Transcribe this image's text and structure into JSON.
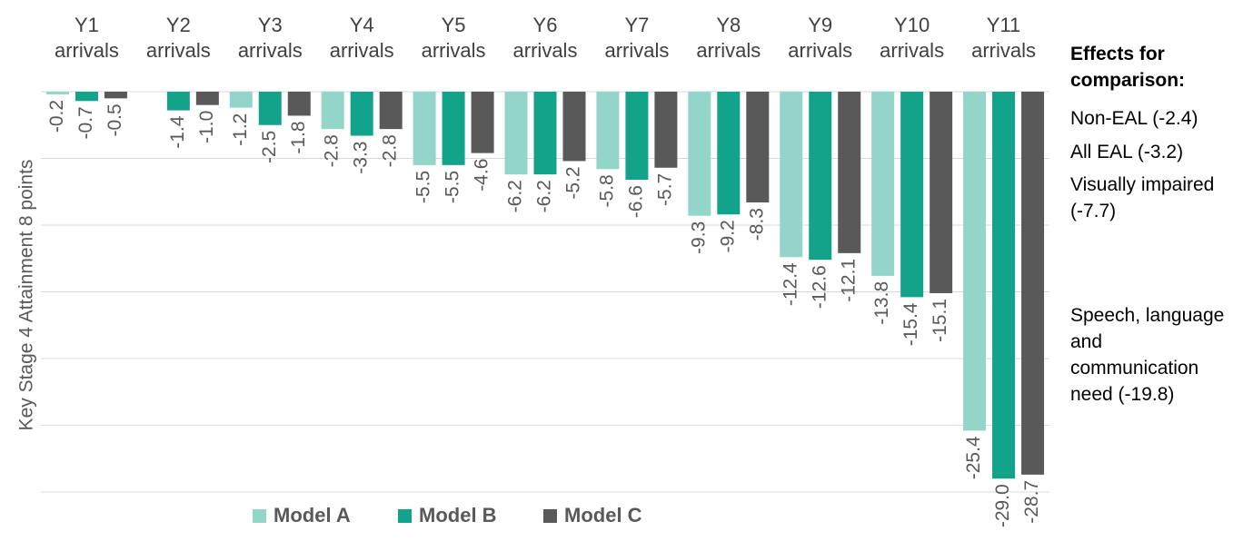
{
  "chart_data": {
    "type": "bar",
    "y_label": "Key Stage 4 Attainment 8 points",
    "categories": [
      "Y1 arrivals",
      "Y2 arrivals",
      "Y3 arrivals",
      "Y4 arrivals",
      "Y5 arrivals",
      "Y6 arrivals",
      "Y7 arrivals",
      "Y8 arrivals",
      "Y9 arrivals",
      "Y10 arrivals",
      "Y11 arrivals"
    ],
    "series": [
      {
        "name": "Model A",
        "color": "#93d5c8",
        "values": [
          -0.2,
          null,
          -1.2,
          -2.8,
          -5.5,
          -6.2,
          -5.8,
          -9.3,
          -12.4,
          -13.8,
          -25.4
        ],
        "value_labels": [
          "-0.2",
          null,
          "-1.2",
          "-2.8",
          "-5.5",
          "-6.2",
          "-5.8",
          "-9.3",
          "-12.4",
          "-13.8",
          "-25.4"
        ]
      },
      {
        "name": "Model B",
        "color": "#13a38a",
        "values": [
          -0.7,
          -1.4,
          -2.5,
          -3.3,
          -5.5,
          -6.2,
          -6.6,
          -9.2,
          -12.6,
          -15.4,
          -29.0
        ],
        "value_labels": [
          "-0.7",
          "-1.4",
          "-2.5",
          "-3.3",
          "-5.5",
          "-6.2",
          "-6.6",
          "-9.2",
          "-12.6",
          "-15.4",
          "-29.0"
        ]
      },
      {
        "name": "Model C",
        "color": "#595959",
        "values": [
          -0.5,
          -1.0,
          -1.8,
          -2.8,
          -4.6,
          -5.2,
          -5.7,
          -8.3,
          -12.1,
          -15.1,
          -28.7
        ],
        "value_labels": [
          "-0.5",
          "-1.0",
          "-1.8",
          "-2.8",
          "-4.6",
          "-5.2",
          "-5.7",
          "-8.3",
          "-12.1",
          "-15.1",
          "-28.7"
        ]
      }
    ],
    "ylim": [
      -30,
      0
    ],
    "yticks": [
      0,
      -5,
      -10,
      -15,
      -20,
      -25,
      -30
    ],
    "grid": true,
    "annotation": {
      "title": "Effects for comparison:",
      "items": [
        "Non-EAL (-2.4)",
        "All EAL (-3.2)",
        "Visually impaired (-7.7)",
        "Speech, language and communication need (-19.8)"
      ]
    }
  }
}
